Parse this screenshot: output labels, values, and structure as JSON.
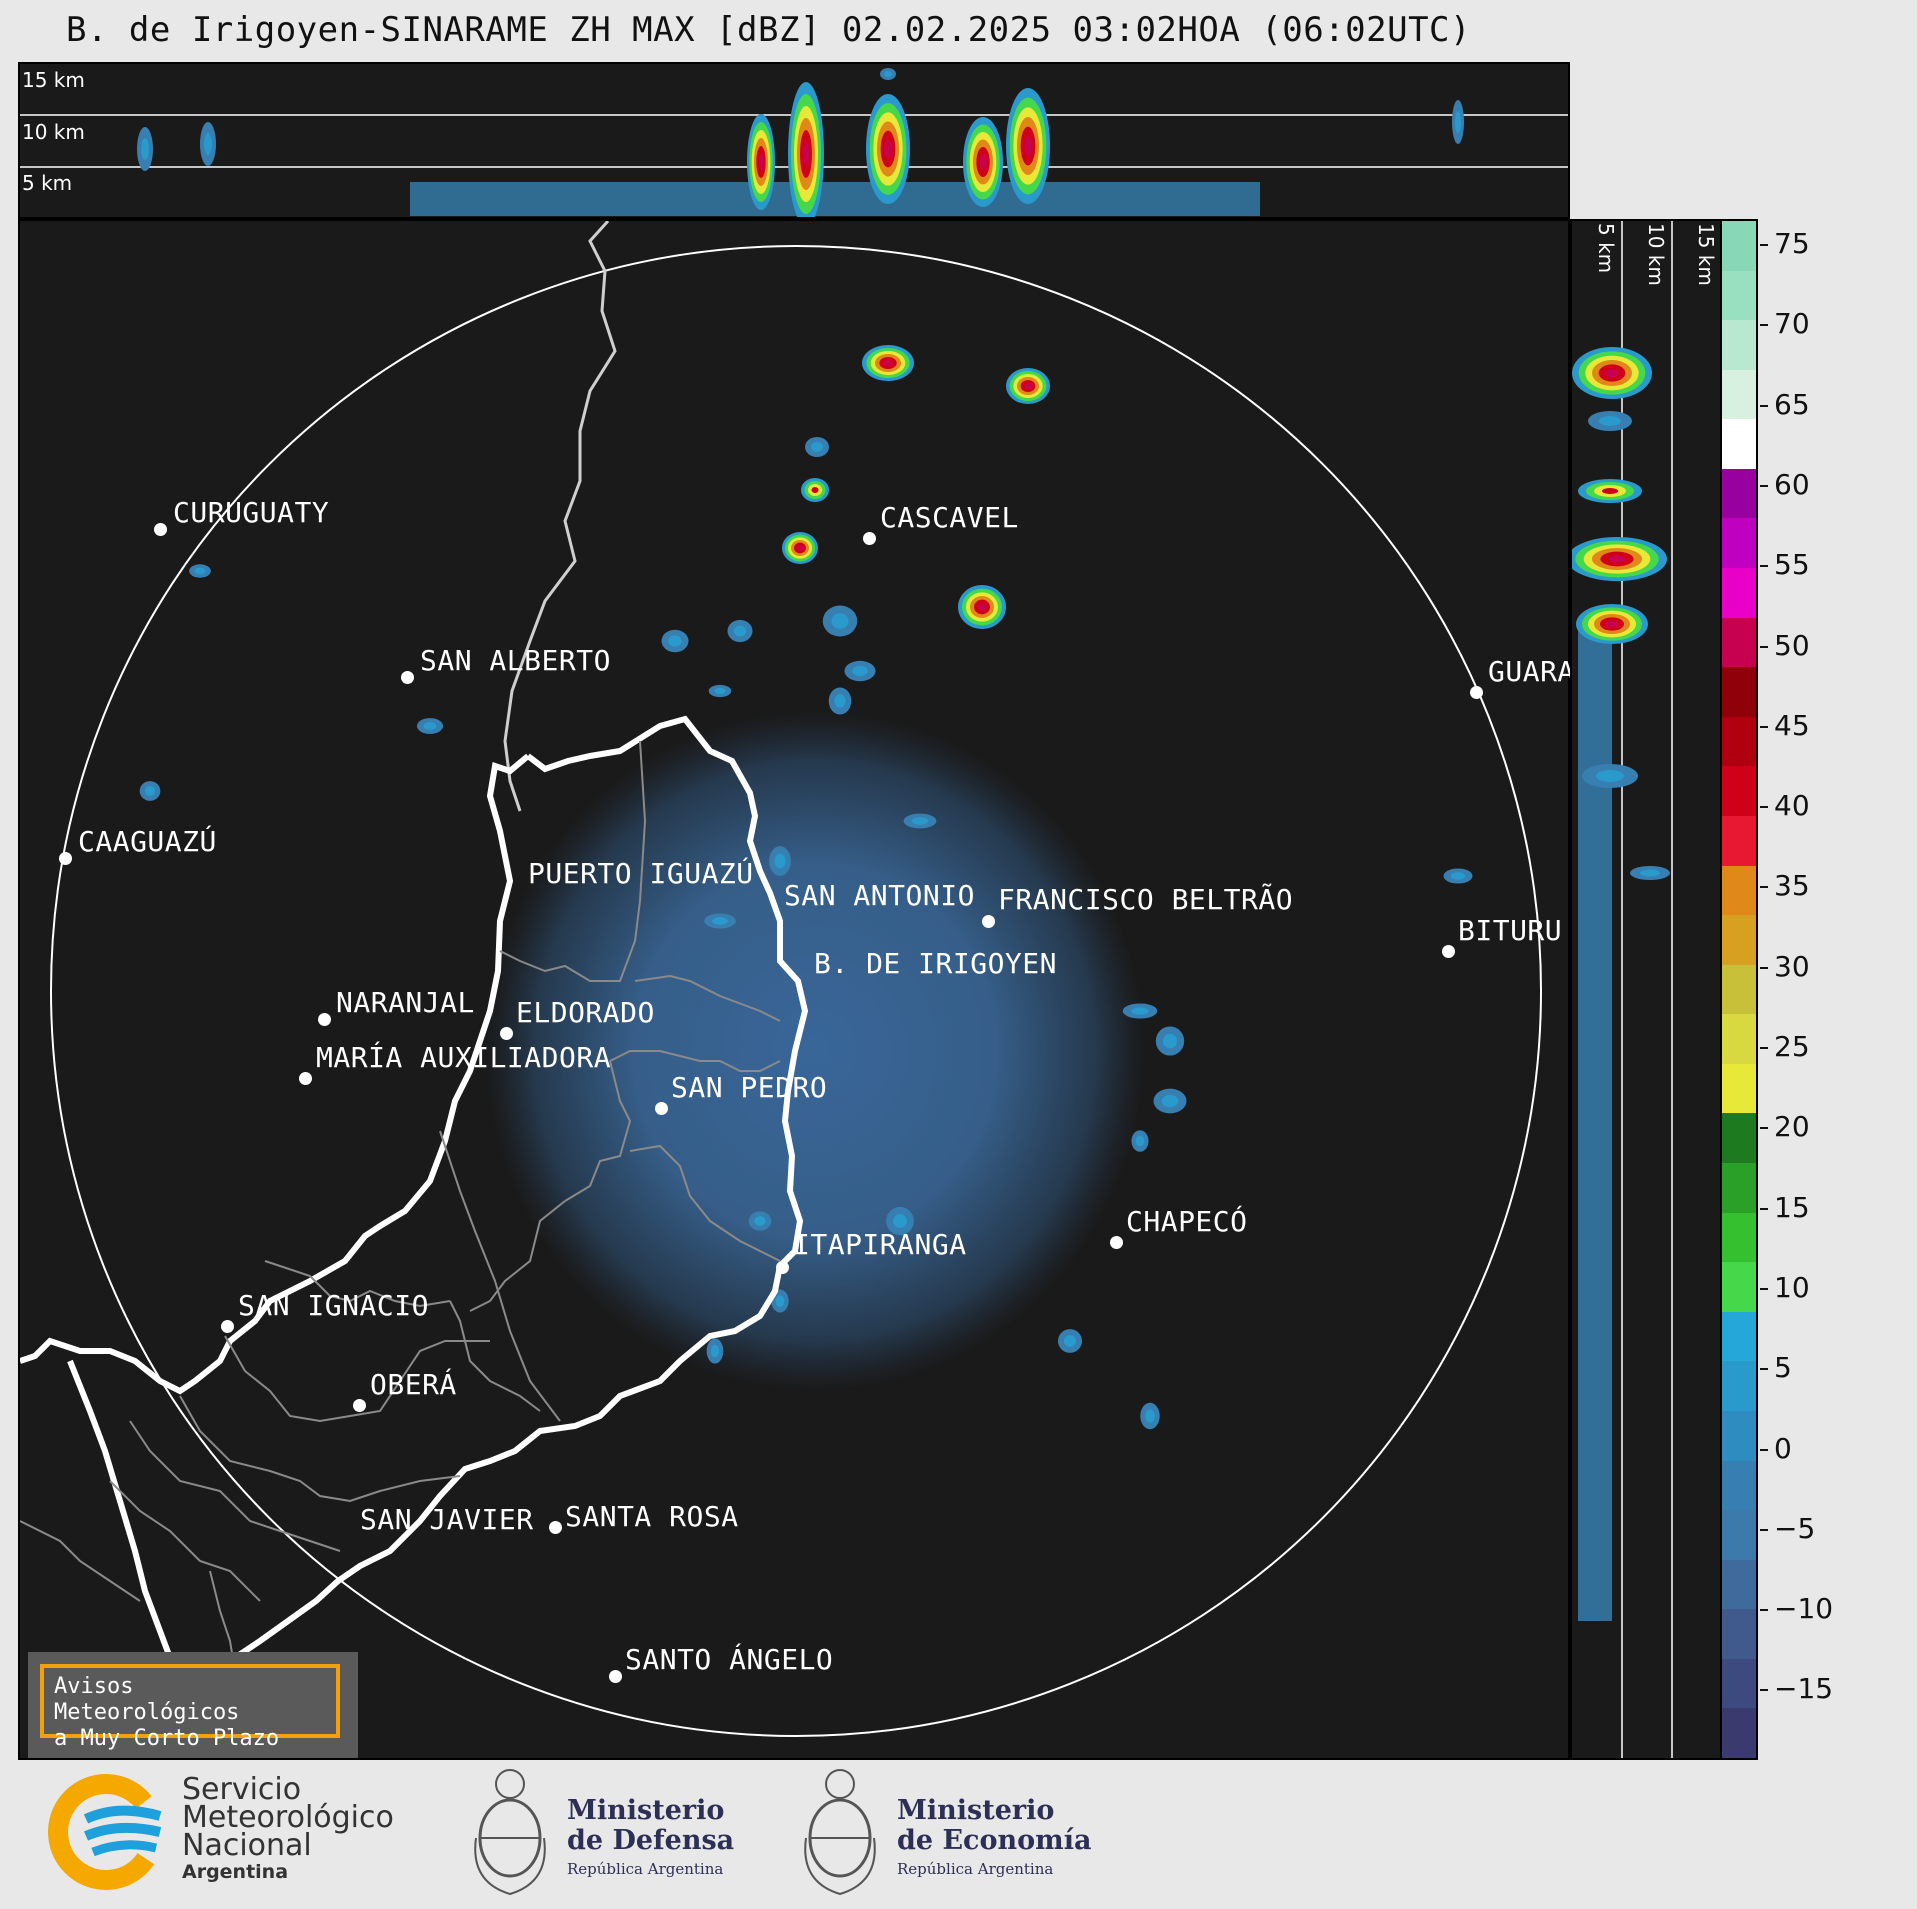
{
  "title": "B. de Irigoyen-SINARAME ZH MAX [dBZ] 02.02.2025 03:02HOA (06:02UTC)",
  "top_panel": {
    "height_labels": [
      "15 km",
      "10 km",
      "5 km"
    ]
  },
  "side_panel": {
    "height_labels": [
      "5 km",
      "10 km",
      "15 km"
    ]
  },
  "cities": [
    {
      "name": "CURUGUATY"
    },
    {
      "name": "SAN ALBERTO"
    },
    {
      "name": "CAAGUAZÚ"
    },
    {
      "name": "PUERTO IGUAZÚ"
    },
    {
      "name": "NARANJAL"
    },
    {
      "name": "SAN ANTONIO"
    },
    {
      "name": "FRANCISCO BELTRÃO"
    },
    {
      "name": "B. DE IRIGOYEN"
    },
    {
      "name": "ELDORADO"
    },
    {
      "name": "MARÍA AUXILIADORA"
    },
    {
      "name": "SAN PEDRO"
    },
    {
      "name": "CASCAVEL"
    },
    {
      "name": "GUARA"
    },
    {
      "name": "BITURU"
    },
    {
      "name": "ITAPIRANGA"
    },
    {
      "name": "CHAPECÓ"
    },
    {
      "name": "SAN IGNACIO"
    },
    {
      "name": "OBERÁ"
    },
    {
      "name": "SAN JAVIER"
    },
    {
      "name": "SANTA ROSA"
    },
    {
      "name": "SANTO ÁNGELO"
    }
  ],
  "colorbar": {
    "ticks": [
      "75",
      "70",
      "65",
      "60",
      "55",
      "50",
      "45",
      "40",
      "35",
      "30",
      "25",
      "20",
      "15",
      "10",
      "5",
      "0",
      "−5",
      "−10",
      "−15"
    ],
    "colors": [
      "#3a3a6e",
      "#3d4a80",
      "#405a8e",
      "#3e6a9c",
      "#3b7aaa",
      "#367fb0",
      "#2f8cc0",
      "#2a99cc",
      "#25a8d8",
      "#45d84a",
      "#35c030",
      "#2aa028",
      "#1e7a1e",
      "#e8e838",
      "#d8d840",
      "#c8c038",
      "#d8a020",
      "#e08818",
      "#e81830",
      "#d00018",
      "#b00010",
      "#900008",
      "#c80050",
      "#e800c8",
      "#c000c0",
      "#9800a0",
      "#ffffff",
      "#d8f0e0",
      "#b8e8d0",
      "#98e0c0",
      "#88d8b8"
    ]
  },
  "warning": {
    "line1": "Avisos Meteorológicos",
    "line2": "a Muy Corto Plazo"
  },
  "logos": {
    "smn": {
      "line1": "Servicio",
      "line2": "Meteorológico",
      "line3": "Nacional",
      "line4": "Argentina"
    },
    "defensa": {
      "line1": "Ministerio",
      "line2": "de Defensa",
      "sub": "República Argentina"
    },
    "economia": {
      "line1": "Ministerio",
      "line2": "de Economía",
      "sub": "República Argentina"
    }
  }
}
